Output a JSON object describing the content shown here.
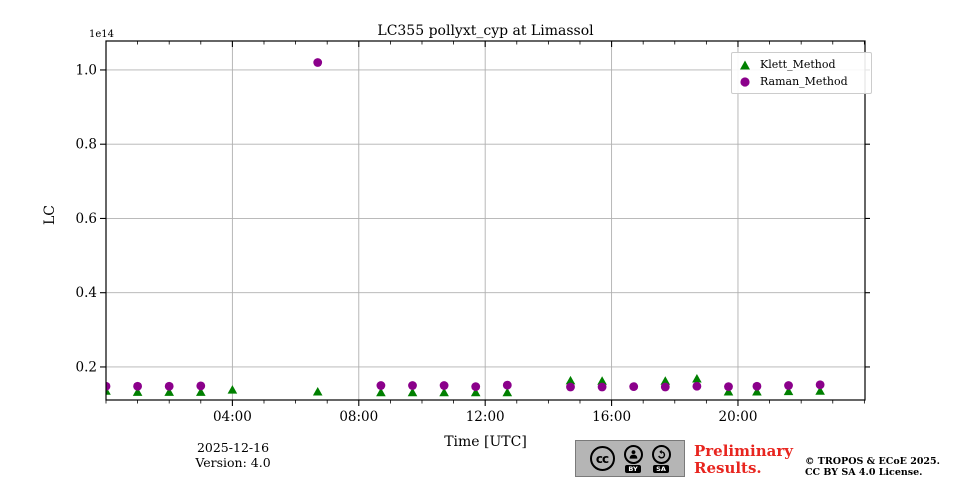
{
  "chart_data": {
    "type": "scatter",
    "title": "LC355 pollyxt_cyp at Limassol",
    "xlabel": "Time [UTC]",
    "ylabel": "LC",
    "offset_text": "1e14",
    "x_unit": "hours UTC on 2025-12-16",
    "value_scale": "1e14",
    "xlim": [
      0,
      24.02
    ],
    "ylim": [
      0.111,
      1.078
    ],
    "grid": true,
    "legend_position": "upper right",
    "xticks_major": {
      "values": [
        4,
        8,
        12,
        16,
        20
      ],
      "labels": [
        "04:00",
        "08:00",
        "12:00",
        "16:00",
        "20:00"
      ]
    },
    "xticks_minor_every_hours": 1,
    "yticks": {
      "values": [
        0.2,
        0.4,
        0.6,
        0.8,
        1.0
      ],
      "labels": [
        "0.2",
        "0.4",
        "0.6",
        "0.8",
        "1.0"
      ]
    },
    "series": [
      {
        "name": "Klett_Method",
        "marker": "triangle",
        "color": "#008000",
        "points": [
          [
            0.0,
            0.135
          ],
          [
            1.0,
            0.132
          ],
          [
            2.0,
            0.132
          ],
          [
            3.0,
            0.132
          ],
          [
            4.0,
            0.138
          ],
          [
            6.7,
            0.133
          ],
          [
            8.7,
            0.131
          ],
          [
            9.7,
            0.131
          ],
          [
            10.7,
            0.131
          ],
          [
            11.7,
            0.131
          ],
          [
            12.7,
            0.131
          ],
          [
            14.7,
            0.163
          ],
          [
            15.7,
            0.162
          ],
          [
            17.7,
            0.162
          ],
          [
            18.7,
            0.168
          ],
          [
            19.7,
            0.133
          ],
          [
            20.6,
            0.133
          ],
          [
            21.6,
            0.134
          ],
          [
            22.6,
            0.135
          ]
        ]
      },
      {
        "name": "Raman_Method",
        "marker": "circle",
        "color": "#8B008B",
        "points": [
          [
            0.0,
            0.148
          ],
          [
            1.0,
            0.148
          ],
          [
            2.0,
            0.148
          ],
          [
            3.0,
            0.149
          ],
          [
            6.7,
            1.02
          ],
          [
            8.7,
            0.15
          ],
          [
            9.7,
            0.15
          ],
          [
            10.7,
            0.15
          ],
          [
            11.7,
            0.147
          ],
          [
            12.7,
            0.151
          ],
          [
            14.7,
            0.146
          ],
          [
            15.7,
            0.146
          ],
          [
            16.7,
            0.147
          ],
          [
            17.7,
            0.146
          ],
          [
            18.7,
            0.148
          ],
          [
            19.7,
            0.147
          ],
          [
            20.6,
            0.148
          ],
          [
            21.6,
            0.15
          ],
          [
            22.6,
            0.152
          ]
        ]
      }
    ],
    "colors": {
      "grid": "#b0b0b0",
      "spine": "#000000"
    }
  },
  "footer": {
    "date": "2025-12-16",
    "version": "Version: 4.0",
    "preliminary": [
      "Preliminary",
      "Results."
    ],
    "copyright": [
      "© TROPOS & ECoE 2025.",
      "CC BY SA 4.0 License."
    ],
    "cc": {
      "cc_label": "cc",
      "by_label": "BY",
      "sa_label": "SA"
    }
  }
}
